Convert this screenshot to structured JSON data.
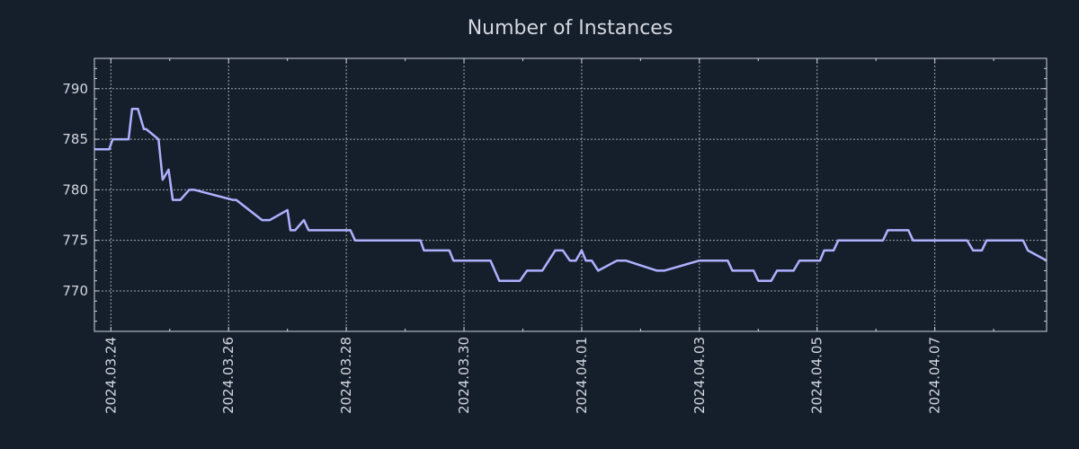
{
  "chart_data": {
    "type": "line",
    "title": "Number of Instances",
    "xlabel": "",
    "ylabel": "",
    "grid": true,
    "ylim": [
      766,
      793
    ],
    "xlim": [
      -0.28,
      15.9
    ],
    "yticks": [
      770,
      775,
      780,
      785,
      790
    ],
    "xticks": [
      {
        "t": 0,
        "label": "2024.03.24"
      },
      {
        "t": 2,
        "label": "2024.03.26"
      },
      {
        "t": 4,
        "label": "2024.03.28"
      },
      {
        "t": 6,
        "label": "2024.03.30"
      },
      {
        "t": 8,
        "label": "2024.04.01"
      },
      {
        "t": 10,
        "label": "2024.04.03"
      },
      {
        "t": 12,
        "label": "2024.04.05"
      },
      {
        "t": 14,
        "label": "2024.04.07"
      }
    ],
    "x_unit": "days since 2024.03.24",
    "series": [
      {
        "name": "Number of Instances",
        "color": "#aeb1ff",
        "x": [
          -0.28,
          -0.03,
          0.03,
          0.3,
          0.36,
          0.46,
          0.56,
          0.6,
          0.81,
          0.88,
          0.98,
          1.05,
          1.18,
          1.33,
          1.42,
          2.07,
          2.13,
          2.57,
          2.7,
          3.0,
          3.05,
          3.13,
          3.28,
          3.36,
          3.48,
          4.07,
          4.15,
          5.26,
          5.32,
          5.75,
          5.82,
          6.45,
          6.6,
          6.95,
          7.07,
          7.3,
          7.33,
          7.55,
          7.68,
          7.8,
          7.9,
          8.0,
          8.07,
          8.17,
          8.28,
          8.6,
          8.75,
          9.28,
          9.4,
          10.0,
          10.07,
          10.48,
          10.56,
          10.92,
          11.0,
          11.22,
          11.32,
          11.6,
          11.7,
          12.05,
          12.12,
          12.28,
          12.36,
          13.12,
          13.2,
          13.55,
          13.63,
          14.55,
          14.65,
          14.8,
          14.88,
          15.5,
          15.58,
          15.9
        ],
        "values": [
          784,
          784,
          785,
          785,
          788,
          788,
          786,
          786,
          785,
          781,
          782,
          779,
          779,
          780,
          780,
          779,
          779,
          777,
          777,
          778,
          776,
          776,
          777,
          776,
          776,
          776,
          775,
          775,
          774,
          774,
          773,
          773,
          771,
          771,
          772,
          772,
          772,
          774,
          774,
          773,
          773,
          774,
          773,
          773,
          772,
          773,
          773,
          772,
          772,
          773,
          773,
          773,
          772,
          772,
          771,
          771,
          772,
          772,
          773,
          773,
          774,
          774,
          775,
          775,
          776,
          776,
          775,
          775,
          774,
          774,
          775,
          775,
          774,
          773
        ]
      }
    ]
  }
}
